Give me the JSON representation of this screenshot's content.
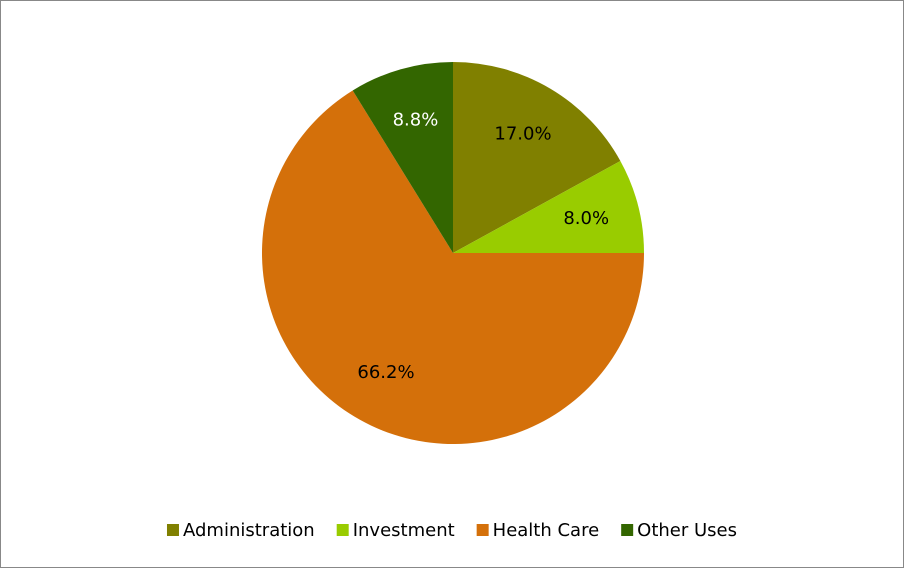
{
  "chart_data": {
    "type": "pie",
    "categories": [
      "Administration",
      "Investment",
      "Health Care",
      "Other Uses"
    ],
    "values": [
      17.0,
      8.0,
      66.2,
      8.8
    ],
    "value_labels": [
      "17.0%",
      "8.0%",
      "66.2%",
      "8.8%"
    ],
    "colors": [
      "#808000",
      "#99cc00",
      "#d4700a",
      "#336600"
    ],
    "legend": "bottom"
  }
}
